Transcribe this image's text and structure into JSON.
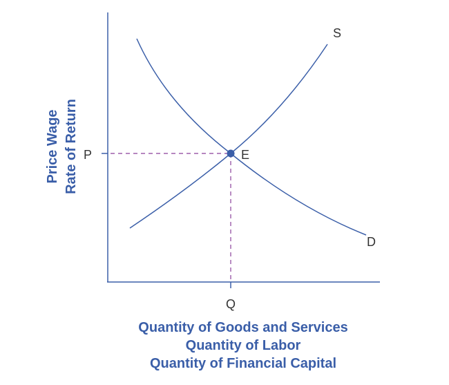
{
  "y_axis_title": [
    "Price Wage",
    "Rate of Return"
  ],
  "x_axis_title": [
    "Quantity of Goods and Services",
    "Quantity of Labor",
    "Quantity of Financial Capital"
  ],
  "curves": {
    "supply_label": "S",
    "demand_label": "D"
  },
  "equilibrium": {
    "point_label": "E",
    "price_label": "P",
    "quantity_label": "Q"
  },
  "colors": {
    "curve": "#3a5ea8",
    "guide": "#8a3f9a",
    "text": "#333333"
  }
}
